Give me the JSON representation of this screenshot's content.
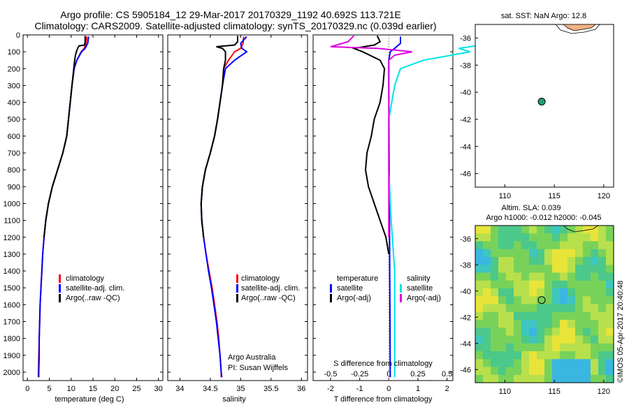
{
  "title": {
    "line1": "Argo profile: CS 5905184_12 29-Mar-2017 20170329_1192 40.692S 113.721E",
    "line2": "Climatology: CARS2009. Satellite-adjusted climatology: synTS_20170329.nc (0.039d earlier)"
  },
  "colors": {
    "climatology": "#ff0000",
    "satellite": "#0000ff",
    "argo": "#000000",
    "s_satellite": "#00e5e5",
    "s_argo": "#e000e0",
    "land": "#f4b183",
    "marker": "#20a070"
  },
  "chart_data": [
    {
      "type": "line",
      "id": "temperature",
      "xlabel": "temperature (deg C)",
      "ylabel": "",
      "xlim": [
        -1,
        31
      ],
      "ylim": [
        2050,
        0
      ],
      "xticks": [
        0,
        5,
        10,
        15,
        20,
        25,
        30
      ],
      "yticks": [
        0,
        100,
        200,
        300,
        400,
        500,
        600,
        700,
        800,
        900,
        1000,
        1100,
        1200,
        1300,
        1400,
        1500,
        1600,
        1700,
        1800,
        1900,
        2000
      ],
      "legend": [
        "climatology",
        "satellite-adj. clim.",
        "Argo(..raw -QC)"
      ],
      "series": [
        {
          "name": "climatology",
          "depth": [
            10,
            50,
            80,
            100,
            150,
            200,
            300,
            400,
            500,
            600,
            700,
            800,
            900,
            1000,
            1100,
            1200,
            1300,
            1400,
            1500,
            1600,
            1700,
            1800,
            1900,
            2000,
            2030
          ],
          "values": [
            13.6,
            13.4,
            13.0,
            12.3,
            11.3,
            10.7,
            10.2,
            9.8,
            9.4,
            9.0,
            8.1,
            6.9,
            5.7,
            4.8,
            4.2,
            3.8,
            3.5,
            3.3,
            3.1,
            2.9,
            2.8,
            2.7,
            2.6,
            2.5,
            2.5
          ]
        },
        {
          "name": "satellite-adj. clim.",
          "depth": [
            10,
            50,
            80,
            100,
            150,
            200,
            300,
            400,
            500,
            600,
            700,
            800,
            900,
            1000,
            1100,
            1200,
            1300,
            1400,
            1500,
            1600,
            1700,
            1800,
            1900,
            2000,
            2030
          ],
          "values": [
            14.0,
            13.8,
            13.2,
            12.4,
            11.3,
            10.7,
            10.2,
            9.8,
            9.4,
            9.0,
            8.1,
            6.9,
            5.7,
            4.8,
            4.2,
            3.8,
            3.5,
            3.3,
            3.1,
            2.9,
            2.8,
            2.7,
            2.7,
            2.6,
            2.6
          ]
        },
        {
          "name": "Argo(..raw -QC)",
          "depth": [
            5,
            40,
            60,
            65,
            80,
            100,
            120,
            150,
            200,
            300,
            400,
            500,
            600,
            700,
            800,
            900,
            1000,
            1100,
            1200
          ],
          "values": [
            13.2,
            13.2,
            13.1,
            11.8,
            11.5,
            11.2,
            11.0,
            10.8,
            10.6,
            10.2,
            9.8,
            9.4,
            9.0,
            8.1,
            6.9,
            5.7,
            4.8,
            4.2,
            3.8
          ]
        }
      ]
    },
    {
      "type": "line",
      "id": "salinity",
      "xlabel": "salinity",
      "ylabel": "",
      "xlim": [
        33.8,
        36.1
      ],
      "ylim": [
        2050,
        0
      ],
      "xticks": [
        34,
        34.5,
        35,
        35.5,
        36
      ],
      "legend": [
        "climatology",
        "satellite-adj. clim.",
        "Argo(..raw -QC)"
      ],
      "annotation": [
        "Argo Australia",
        "PI: Susan Wijffels"
      ],
      "series": [
        {
          "name": "climatology",
          "depth": [
            10,
            50,
            80,
            100,
            150,
            200,
            300,
            400,
            500,
            600,
            700,
            800,
            900,
            1000,
            1100,
            1200,
            1300,
            1400,
            1500,
            1600,
            1700,
            1800,
            1900,
            2000,
            2030
          ],
          "values": [
            35.05,
            35.04,
            35.0,
            34.9,
            34.8,
            34.72,
            34.7,
            34.66,
            34.62,
            34.57,
            34.5,
            34.42,
            34.37,
            34.35,
            34.36,
            34.39,
            34.43,
            34.48,
            34.53,
            34.57,
            34.61,
            34.64,
            34.66,
            34.68,
            34.68
          ]
        },
        {
          "name": "satellite-adj. clim.",
          "depth": [
            10,
            50,
            80,
            100,
            150,
            200,
            300,
            400,
            500,
            600,
            700,
            800,
            900,
            1000,
            1100,
            1200,
            1300,
            1400,
            1500,
            1600,
            1700,
            1800,
            1900,
            2000,
            2030
          ],
          "values": [
            35.1,
            35.0,
            35.02,
            35.1,
            34.9,
            34.75,
            34.7,
            34.66,
            34.62,
            34.57,
            34.5,
            34.42,
            34.37,
            34.35,
            34.36,
            34.39,
            34.43,
            34.47,
            34.52,
            34.56,
            34.6,
            34.63,
            34.66,
            34.68,
            34.69
          ]
        },
        {
          "name": "Argo(..raw -QC)",
          "depth": [
            5,
            40,
            60,
            70,
            80,
            100,
            150,
            200,
            300,
            400,
            500,
            600,
            700,
            800,
            900,
            1000,
            1100,
            1200
          ],
          "values": [
            34.95,
            34.95,
            34.9,
            34.6,
            34.7,
            34.75,
            34.75,
            34.72,
            34.7,
            34.66,
            34.62,
            34.57,
            34.5,
            34.42,
            34.37,
            34.35,
            34.36,
            34.39
          ]
        }
      ]
    },
    {
      "type": "line",
      "id": "difference",
      "xlabel": "T difference from climatology",
      "xlabel_top": "S difference from climatology",
      "xlim": [
        -2.6,
        2.2
      ],
      "ylim": [
        2050,
        0
      ],
      "xticks": [
        -2,
        -1,
        0,
        1,
        2
      ],
      "xticks_s": [
        -0.5,
        -0.25,
        0,
        0.25,
        0.5
      ],
      "legend_t": [
        "temperature",
        "satellite",
        "Argo(-adj)"
      ],
      "legend_s": [
        "salinity",
        "satellite",
        "Argo(-adj)"
      ],
      "series": [
        {
          "name": "T satellite",
          "depth": [
            10,
            50,
            80,
            100,
            150,
            300,
            2030
          ],
          "values": [
            0.4,
            0.4,
            0.2,
            0.05,
            0.0,
            0.0,
            0.05
          ]
        },
        {
          "name": "T Argo(-adj)",
          "depth": [
            5,
            40,
            60,
            80,
            100,
            150,
            200,
            300,
            400,
            500,
            600,
            700,
            800,
            900,
            1000,
            1100,
            1200,
            1300
          ],
          "values": [
            -0.4,
            -0.3,
            -0.5,
            -1.2,
            -0.9,
            -0.3,
            -0.15,
            -0.2,
            -0.3,
            -0.5,
            -0.6,
            -0.75,
            -0.8,
            -0.7,
            -0.5,
            -0.3,
            -0.1,
            0.0
          ]
        },
        {
          "name": "S satellite",
          "depth": [
            10,
            50,
            80,
            100,
            150,
            200,
            300,
            500,
            800,
            1100,
            1400,
            2030
          ],
          "values": [
            0.8,
            0.9,
            0.6,
            0.7,
            0.3,
            0.1,
            0.05,
            0.0,
            0.0,
            0.02,
            0.05,
            0.05
          ]
        },
        {
          "name": "S Argo(-adj)",
          "depth": [
            5,
            40,
            70,
            80,
            100,
            120,
            150,
            300,
            1200
          ],
          "values": [
            -0.3,
            -0.35,
            -0.5,
            -0.1,
            0.2,
            0.05,
            0.0,
            0.0,
            0.0
          ]
        }
      ]
    },
    {
      "type": "scatter",
      "id": "sst-map",
      "title": "sat. SST: NaN Argo: 12.8",
      "xlim": [
        107,
        121
      ],
      "ylim": [
        -47,
        -35
      ],
      "xticks": [
        110,
        115,
        120
      ],
      "yticks": [
        -36,
        -38,
        -40,
        -42,
        -44,
        -46
      ],
      "points": [
        {
          "x": 113.721,
          "y": -40.692
        }
      ]
    },
    {
      "type": "heatmap",
      "id": "sla-map",
      "title": [
        "Altim. SLA: 0.039",
        "Argo h1000: -0.012 h2000: -0.045"
      ],
      "xlim": [
        107,
        121
      ],
      "ylim": [
        -47,
        -35
      ],
      "xticks": [
        110,
        115,
        120
      ],
      "yticks": [
        -36,
        -38,
        -40,
        -42,
        -44,
        -46
      ],
      "points": [
        {
          "x": 113.721,
          "y": -40.692
        }
      ]
    }
  ],
  "credit": "©IMOS 05-Apr-2017 20:40:48"
}
